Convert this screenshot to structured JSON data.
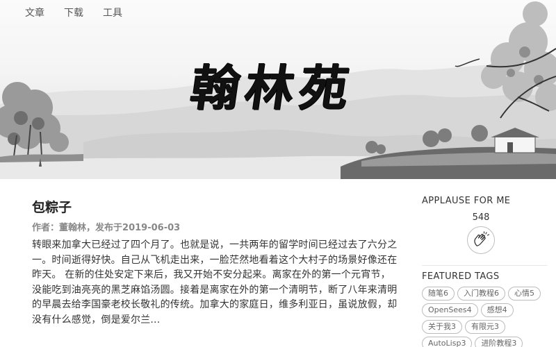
{
  "nav": {
    "items": [
      {
        "label": "文章"
      },
      {
        "label": "下载"
      },
      {
        "label": "工具"
      }
    ]
  },
  "banner": {
    "logo_text": "翰林苑"
  },
  "article": {
    "title": "包粽子",
    "author_label": "作者：",
    "author": "董翰林",
    "published_label": "，发布于",
    "date": "2019-06-03",
    "excerpt": "转眼来加拿大已经过了四个月了。也就是说，一共两年的留学时间已经过去了六分之一。时间逝得好快。自己从飞机走出来，一脸茫然地看着这个大村子的场景好像还在昨天。 在新的住处安定下来后，我又开始不安分起来。离家在外的第一个元宵节，没能吃到油亮亮的黑芝麻馅汤圆。接着是离家在外的第一个清明节，断了八年来清明的早晨去给李国豪老校长敬礼的传统。加拿大的家庭日，维多利亚日，虽说放假，却没有什么感觉，倒是爱尔兰..."
  },
  "sidebar": {
    "applause_title": "APPLAUSE FOR ME",
    "applause_count": "548",
    "featured_title": "FEATURED TAGS",
    "tags": [
      {
        "label": "随笔6"
      },
      {
        "label": "入门教程6"
      },
      {
        "label": "心情5"
      },
      {
        "label": "OpenSees4"
      },
      {
        "label": "感想4"
      },
      {
        "label": "关于我3"
      },
      {
        "label": "有限元3"
      },
      {
        "label": "AutoLisp3"
      },
      {
        "label": "进阶教程3"
      }
    ]
  }
}
